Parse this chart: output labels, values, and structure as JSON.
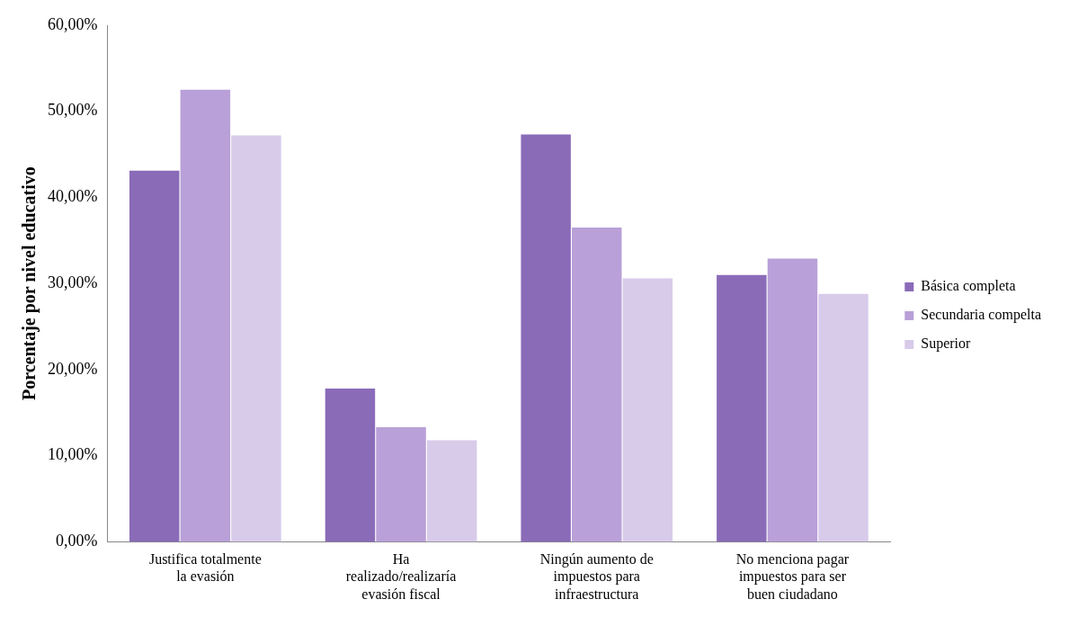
{
  "chart_data": {
    "type": "bar",
    "ylabel": "Porcentaje por nivel educativo",
    "categories": [
      "Justifica totalmente la evasión",
      "Ha realizado/realizaría evasión fiscal",
      "Ningún aumento de impuestos para infraestructura",
      "No menciona pagar impuestos para ser buen ciudadano"
    ],
    "series": [
      {
        "name": "Básica completa",
        "color": "#8a6bb8",
        "values": [
          43.1,
          17.8,
          47.3,
          31.0
        ]
      },
      {
        "name": "Secundaria compelta",
        "color": "#b9a0d8",
        "values": [
          52.5,
          13.3,
          36.5,
          32.9
        ]
      },
      {
        "name": "Superior",
        "color": "#d8cbea",
        "values": [
          47.2,
          11.8,
          30.6,
          28.8
        ]
      }
    ],
    "ylim": [
      0,
      60
    ],
    "yticks": [
      {
        "value": 0,
        "label": "0,00%"
      },
      {
        "value": 10,
        "label": "10,00%"
      },
      {
        "value": 20,
        "label": "20,00%"
      },
      {
        "value": 30,
        "label": "30,00%"
      },
      {
        "value": 40,
        "label": "40,00%"
      },
      {
        "value": 50,
        "label": "50,00%"
      },
      {
        "value": 60,
        "label": "60,00%"
      }
    ],
    "grid": false,
    "legend": "right"
  }
}
